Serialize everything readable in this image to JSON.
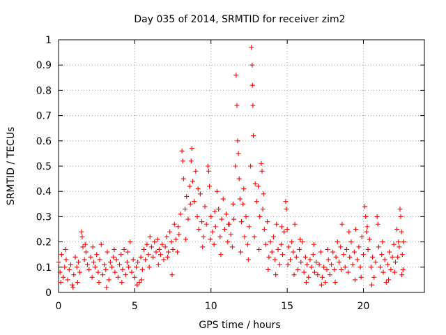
{
  "chart_data": {
    "type": "scatter",
    "title": "Day 035 of 2014, SRMTID for receiver zim2",
    "xlabel": "GPS time / hours",
    "ylabel": "SRMTID / TECUs",
    "xlim": [
      0,
      24
    ],
    "ylim": [
      0,
      1
    ],
    "xticks": [
      0,
      5,
      10,
      15,
      20
    ],
    "xtick_labels": [
      "0",
      "5",
      "10",
      "15",
      "20"
    ],
    "yticks": [
      0,
      0.1,
      0.2,
      0.3,
      0.4,
      0.5,
      0.6,
      0.7,
      0.8,
      0.9,
      1
    ],
    "ytick_labels": [
      "0",
      "0.1",
      "0.2",
      "0.3",
      "0.4",
      "0.5",
      "0.6",
      "0.7",
      "0.8",
      "0.9",
      "1"
    ],
    "grid": true,
    "marker": "+",
    "series": [
      {
        "name": "SRMTID",
        "color": "#ff0000",
        "points": [
          [
            0.0,
            0.12
          ],
          [
            0.1,
            0.08
          ],
          [
            0.2,
            0.15
          ],
          [
            0.3,
            0.06
          ],
          [
            0.4,
            0.1
          ],
          [
            0.5,
            0.13
          ],
          [
            0.6,
            0.05
          ],
          [
            0.7,
            0.09
          ],
          [
            0.8,
            0.11
          ],
          [
            0.9,
            0.03
          ],
          [
            1.0,
            0.07
          ],
          [
            1.1,
            0.14
          ],
          [
            1.2,
            0.1
          ],
          [
            1.3,
            0.12
          ],
          [
            1.4,
            0.08
          ],
          [
            1.5,
            0.24
          ],
          [
            1.55,
            0.22
          ],
          [
            1.6,
            0.18
          ],
          [
            1.7,
            0.13
          ],
          [
            1.8,
            0.16
          ],
          [
            1.9,
            0.11
          ],
          [
            2.0,
            0.09
          ],
          [
            2.1,
            0.14
          ],
          [
            2.2,
            0.06
          ],
          [
            2.3,
            0.12
          ],
          [
            2.4,
            0.1
          ],
          [
            2.5,
            0.15
          ],
          [
            2.6,
            0.08
          ],
          [
            2.7,
            0.13
          ],
          [
            2.8,
            0.19
          ],
          [
            2.9,
            0.07
          ],
          [
            3.0,
            0.11
          ],
          [
            3.1,
            0.09
          ],
          [
            3.2,
            0.16
          ],
          [
            3.3,
            0.05
          ],
          [
            3.4,
            0.12
          ],
          [
            3.5,
            0.1
          ],
          [
            3.6,
            0.14
          ],
          [
            3.7,
            0.08
          ],
          [
            3.8,
            0.13
          ],
          [
            3.9,
            0.06
          ],
          [
            4.0,
            0.11
          ],
          [
            4.1,
            0.15
          ],
          [
            4.2,
            0.09
          ],
          [
            4.3,
            0.17
          ],
          [
            4.4,
            0.07
          ],
          [
            4.5,
            0.12
          ],
          [
            4.6,
            0.1
          ],
          [
            4.7,
            0.2
          ],
          [
            4.8,
            0.08
          ],
          [
            4.9,
            0.13
          ],
          [
            5.0,
            0.06
          ],
          [
            5.1,
            0.1
          ],
          [
            5.2,
            0.12
          ],
          [
            5.3,
            0.04
          ],
          [
            5.4,
            0.14
          ],
          [
            5.5,
            0.09
          ],
          [
            5.6,
            0.17
          ],
          [
            5.7,
            0.13
          ],
          [
            5.8,
            0.19
          ],
          [
            5.9,
            0.15
          ],
          [
            6.0,
            0.22
          ],
          [
            6.1,
            0.18
          ],
          [
            6.2,
            0.14
          ],
          [
            6.3,
            0.2
          ],
          [
            6.4,
            0.16
          ],
          [
            6.5,
            0.21
          ],
          [
            6.6,
            0.17
          ],
          [
            6.7,
            0.15
          ],
          [
            6.8,
            0.19
          ],
          [
            6.9,
            0.13
          ],
          [
            7.0,
            0.18
          ],
          [
            7.1,
            0.22
          ],
          [
            7.2,
            0.16
          ],
          [
            7.3,
            0.24
          ],
          [
            7.4,
            0.2
          ],
          [
            7.5,
            0.17
          ],
          [
            7.6,
            0.27
          ],
          [
            7.7,
            0.21
          ],
          [
            7.8,
            0.16
          ],
          [
            7.9,
            0.23
          ],
          [
            8.0,
            0.31
          ],
          [
            8.1,
            0.56
          ],
          [
            8.15,
            0.52
          ],
          [
            8.2,
            0.45
          ],
          [
            8.3,
            0.33
          ],
          [
            8.4,
            0.38
          ],
          [
            8.5,
            0.29
          ],
          [
            8.6,
            0.42
          ],
          [
            8.7,
            0.52
          ],
          [
            8.75,
            0.57
          ],
          [
            8.8,
            0.44
          ],
          [
            8.9,
            0.36
          ],
          [
            9.0,
            0.48
          ],
          [
            9.1,
            0.3
          ],
          [
            9.2,
            0.25
          ],
          [
            9.3,
            0.39
          ],
          [
            9.4,
            0.28
          ],
          [
            9.5,
            0.22
          ],
          [
            9.6,
            0.34
          ],
          [
            9.7,
            0.27
          ],
          [
            9.8,
            0.5
          ],
          [
            9.85,
            0.48
          ],
          [
            9.9,
            0.42
          ],
          [
            10.0,
            0.3
          ],
          [
            10.1,
            0.24
          ],
          [
            10.2,
            0.19
          ],
          [
            10.3,
            0.26
          ],
          [
            10.4,
            0.4
          ],
          [
            10.5,
            0.33
          ],
          [
            10.6,
            0.22
          ],
          [
            10.7,
            0.29
          ],
          [
            10.8,
            0.37
          ],
          [
            10.9,
            0.25
          ],
          [
            11.0,
            0.31
          ],
          [
            11.1,
            0.2
          ],
          [
            11.2,
            0.27
          ],
          [
            11.3,
            0.23
          ],
          [
            11.4,
            0.18
          ],
          [
            11.5,
            0.29
          ],
          [
            11.6,
            0.5
          ],
          [
            11.65,
            0.86
          ],
          [
            11.7,
            0.74
          ],
          [
            11.75,
            0.6
          ],
          [
            11.8,
            0.55
          ],
          [
            11.85,
            0.45
          ],
          [
            11.9,
            0.37
          ],
          [
            12.0,
            0.28
          ],
          [
            12.1,
            0.35
          ],
          [
            12.2,
            0.22
          ],
          [
            12.3,
            0.3
          ],
          [
            12.4,
            0.19
          ],
          [
            12.5,
            0.26
          ],
          [
            12.6,
            0.5
          ],
          [
            12.65,
            0.97
          ],
          [
            12.7,
            0.9
          ],
          [
            12.72,
            0.82
          ],
          [
            12.75,
            0.74
          ],
          [
            12.78,
            0.62
          ],
          [
            12.9,
            0.43
          ],
          [
            13.0,
            0.36
          ],
          [
            13.1,
            0.42
          ],
          [
            13.2,
            0.3
          ],
          [
            13.3,
            0.51
          ],
          [
            13.35,
            0.48
          ],
          [
            13.4,
            0.33
          ],
          [
            13.5,
            0.25
          ],
          [
            13.6,
            0.19
          ],
          [
            13.7,
            0.28
          ],
          [
            13.8,
            0.14
          ],
          [
            13.9,
            0.2
          ],
          [
            14.0,
            0.16
          ],
          [
            14.1,
            0.22
          ],
          [
            14.2,
            0.13
          ],
          [
            14.3,
            0.27
          ],
          [
            14.4,
            0.17
          ],
          [
            14.5,
            0.11
          ],
          [
            14.6,
            0.19
          ],
          [
            14.7,
            0.15
          ],
          [
            14.8,
            0.24
          ],
          [
            14.9,
            0.36
          ],
          [
            14.95,
            0.33
          ],
          [
            15.0,
            0.25
          ],
          [
            15.1,
            0.18
          ],
          [
            15.2,
            0.13
          ],
          [
            15.3,
            0.2
          ],
          [
            15.4,
            0.16
          ],
          [
            15.5,
            0.27
          ],
          [
            15.6,
            0.14
          ],
          [
            15.7,
            0.09
          ],
          [
            15.8,
            0.17
          ],
          [
            15.9,
            0.12
          ],
          [
            16.0,
            0.2
          ],
          [
            16.1,
            0.08
          ],
          [
            16.2,
            0.14
          ],
          [
            16.3,
            0.11
          ],
          [
            16.4,
            0.06
          ],
          [
            16.5,
            0.13
          ],
          [
            16.6,
            0.1
          ],
          [
            16.7,
            0.15
          ],
          [
            16.8,
            0.08
          ],
          [
            16.9,
            0.12
          ],
          [
            17.0,
            0.07
          ],
          [
            17.1,
            0.11
          ],
          [
            17.2,
            0.16
          ],
          [
            17.3,
            0.06
          ],
          [
            17.4,
            0.1
          ],
          [
            17.5,
            0.04
          ],
          [
            17.6,
            0.09
          ],
          [
            17.7,
            0.13
          ],
          [
            17.8,
            0.07
          ],
          [
            17.9,
            0.11
          ],
          [
            18.0,
            0.16
          ],
          [
            18.1,
            0.09
          ],
          [
            18.2,
            0.14
          ],
          [
            18.3,
            0.2
          ],
          [
            18.4,
            0.12
          ],
          [
            18.5,
            0.18
          ],
          [
            18.6,
            0.27
          ],
          [
            18.7,
            0.15
          ],
          [
            18.8,
            0.1
          ],
          [
            18.9,
            0.17
          ],
          [
            19.0,
            0.08
          ],
          [
            19.1,
            0.14
          ],
          [
            19.2,
            0.2
          ],
          [
            19.3,
            0.11
          ],
          [
            19.4,
            0.16
          ],
          [
            19.5,
            0.25
          ],
          [
            19.6,
            0.13
          ],
          [
            19.7,
            0.18
          ],
          [
            19.8,
            0.1
          ],
          [
            19.9,
            0.22
          ],
          [
            20.0,
            0.15
          ],
          [
            20.1,
            0.34
          ],
          [
            20.15,
            0.3
          ],
          [
            20.2,
            0.24
          ],
          [
            20.3,
            0.17
          ],
          [
            20.4,
            0.21
          ],
          [
            20.5,
            0.1
          ],
          [
            20.6,
            0.14
          ],
          [
            20.7,
            0.06
          ],
          [
            20.8,
            0.12
          ],
          [
            20.9,
            0.3
          ],
          [
            21.0,
            0.18
          ],
          [
            21.1,
            0.1
          ],
          [
            21.2,
            0.15
          ],
          [
            21.3,
            0.08
          ],
          [
            21.4,
            0.13
          ],
          [
            21.5,
            0.04
          ],
          [
            21.6,
            0.11
          ],
          [
            21.7,
            0.16
          ],
          [
            21.8,
            0.09
          ],
          [
            21.9,
            0.14
          ],
          [
            22.0,
            0.19
          ],
          [
            22.1,
            0.12
          ],
          [
            22.2,
            0.25
          ],
          [
            22.3,
            0.2
          ],
          [
            22.35,
            0.18
          ],
          [
            22.4,
            0.33
          ],
          [
            22.45,
            0.3
          ],
          [
            22.5,
            0.24
          ],
          [
            22.55,
            0.15
          ],
          [
            22.6,
            0.09
          ],
          [
            0.15,
            0.04
          ],
          [
            0.45,
            0.17
          ],
          [
            0.95,
            0.02
          ],
          [
            1.25,
            0.04
          ],
          [
            1.75,
            0.19
          ],
          [
            2.25,
            0.18
          ],
          [
            2.65,
            0.04
          ],
          [
            3.15,
            0.02
          ],
          [
            3.65,
            0.17
          ],
          [
            4.15,
            0.04
          ],
          [
            4.55,
            0.16
          ],
          [
            5.15,
            0.03
          ],
          [
            5.45,
            0.05
          ],
          [
            5.95,
            0.1
          ],
          [
            6.55,
            0.11
          ],
          [
            7.15,
            0.14
          ],
          [
            7.45,
            0.07
          ],
          [
            7.85,
            0.26
          ],
          [
            8.35,
            0.21
          ],
          [
            8.65,
            0.35
          ],
          [
            9.15,
            0.41
          ],
          [
            9.45,
            0.18
          ],
          [
            9.95,
            0.21
          ],
          [
            10.25,
            0.32
          ],
          [
            10.65,
            0.15
          ],
          [
            11.15,
            0.27
          ],
          [
            11.45,
            0.35
          ],
          [
            11.95,
            0.16
          ],
          [
            12.15,
            0.41
          ],
          [
            12.45,
            0.13
          ],
          [
            12.85,
            0.22
          ],
          [
            13.15,
            0.17
          ],
          [
            13.45,
            0.39
          ],
          [
            13.75,
            0.09
          ],
          [
            14.25,
            0.07
          ],
          [
            14.65,
            0.26
          ],
          [
            15.05,
            0.11
          ],
          [
            15.45,
            0.07
          ],
          [
            15.85,
            0.21
          ],
          [
            16.25,
            0.04
          ],
          [
            16.75,
            0.19
          ],
          [
            17.25,
            0.03
          ],
          [
            17.65,
            0.17
          ],
          [
            18.15,
            0.04
          ],
          [
            18.55,
            0.09
          ],
          [
            19.05,
            0.24
          ],
          [
            19.45,
            0.05
          ],
          [
            19.85,
            0.06
          ],
          [
            20.25,
            0.26
          ],
          [
            20.55,
            0.03
          ],
          [
            20.95,
            0.27
          ],
          [
            21.25,
            0.2
          ],
          [
            21.65,
            0.05
          ],
          [
            22.05,
            0.08
          ],
          [
            22.25,
            0.14
          ],
          [
            22.65,
            0.2
          ],
          [
            22.52,
            0.07
          ]
        ]
      }
    ]
  }
}
